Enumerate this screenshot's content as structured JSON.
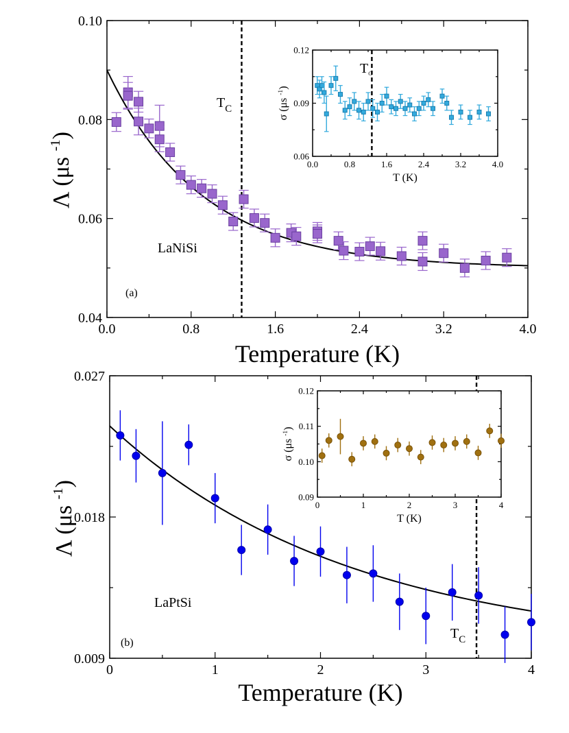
{
  "chart_data": [
    {
      "id": "a",
      "type": "scatter",
      "panel_label": "(a)",
      "sample_label": "LaNiSi",
      "tc_label": "T",
      "tc_sub": "C",
      "tc_value": 1.28,
      "xlabel": "Temperature (K)",
      "ylabel_main": "Λ (μs",
      "ylabel_sup": "-1",
      "ylabel_close": ")",
      "xlim": [
        0.0,
        4.0
      ],
      "ylim": [
        0.04,
        0.1
      ],
      "xticks": [
        0.0,
        0.8,
        1.6,
        2.4,
        3.2,
        4.0
      ],
      "xtick_labels": [
        "0.0",
        "0.8",
        "1.6",
        "2.4",
        "3.2",
        "4.0"
      ],
      "yticks": [
        0.04,
        0.06,
        0.08,
        0.1
      ],
      "ytick_labels": [
        "0.04",
        "0.06",
        "0.08",
        "0.10"
      ],
      "marker": "square",
      "color": "#9966cc",
      "edge_color": "#6a3fa0",
      "fit": {
        "type": "exp_decay",
        "A0": 0.09,
        "A_inf": 0.05,
        "tau": 0.9
      },
      "series": [
        {
          "x": [
            0.09,
            0.2,
            0.2,
            0.3,
            0.3,
            0.4,
            0.5,
            0.5,
            0.6,
            0.7,
            0.8,
            0.9,
            1.0,
            1.1,
            1.2,
            1.3,
            1.4,
            1.5,
            1.6,
            1.75,
            1.8,
            2.0,
            2.0,
            2.2,
            2.25,
            2.4,
            2.5,
            2.6,
            2.8,
            3.0,
            3.0,
            3.2,
            3.4,
            3.6,
            3.8
          ],
          "y": [
            0.0795,
            0.0855,
            0.0848,
            0.0836,
            0.0796,
            0.0782,
            0.0787,
            0.076,
            0.0734,
            0.0688,
            0.0668,
            0.0661,
            0.065,
            0.0627,
            0.0594,
            0.0639,
            0.0601,
            0.0591,
            0.0561,
            0.0571,
            0.0564,
            0.0574,
            0.0569,
            0.0555,
            0.0535,
            0.0533,
            0.0544,
            0.0534,
            0.0524,
            0.0555,
            0.0513,
            0.053,
            0.05,
            0.0515,
            0.0521
          ],
          "err": [
            0.0019,
            0.0032,
            0.0027,
            0.0021,
            0.0027,
            0.0019,
            0.0042,
            0.0025,
            0.0018,
            0.0018,
            0.0018,
            0.0018,
            0.0018,
            0.0018,
            0.0018,
            0.0018,
            0.0018,
            0.0018,
            0.0018,
            0.0018,
            0.0018,
            0.0018,
            0.0018,
            0.0018,
            0.0018,
            0.0018,
            0.0018,
            0.0018,
            0.0018,
            0.0018,
            0.0018,
            0.0018,
            0.0018,
            0.0018,
            0.0018
          ]
        }
      ],
      "inset": {
        "type": "scatter",
        "xlabel": "T (K)",
        "ylabel": "σ (μs",
        "ylabel_sup": "-1",
        "ylabel_close": ")",
        "tc_label": "T",
        "tc_sub": "C",
        "tc_value": 1.28,
        "xlim": [
          0.0,
          4.0
        ],
        "ylim": [
          0.06,
          0.12
        ],
        "xticks": [
          0.0,
          0.8,
          1.6,
          2.4,
          3.2,
          4.0
        ],
        "xtick_labels": [
          "0.0",
          "0.8",
          "1.6",
          "2.4",
          "3.2",
          "4.0"
        ],
        "yticks": [
          0.06,
          0.09,
          0.12
        ],
        "ytick_labels": [
          "0.06",
          "0.09",
          "0.12"
        ],
        "color": "#33aadd",
        "edge_color": "#1a7fb0",
        "marker": "square",
        "series": [
          {
            "x": [
              0.1,
              0.15,
              0.2,
              0.25,
              0.3,
              0.4,
              0.5,
              0.6,
              0.7,
              0.8,
              0.9,
              1.0,
              1.1,
              1.2,
              1.3,
              1.4,
              1.5,
              1.6,
              1.7,
              1.8,
              1.9,
              2.0,
              2.1,
              2.2,
              2.3,
              2.4,
              2.5,
              2.6,
              2.8,
              2.9,
              3.0,
              3.2,
              3.4,
              3.6,
              3.8
            ],
            "y": [
              0.1,
              0.098,
              0.1,
              0.096,
              0.084,
              0.1,
              0.104,
              0.095,
              0.086,
              0.088,
              0.091,
              0.086,
              0.085,
              0.091,
              0.087,
              0.085,
              0.09,
              0.094,
              0.088,
              0.087,
              0.091,
              0.087,
              0.089,
              0.084,
              0.087,
              0.09,
              0.092,
              0.087,
              0.094,
              0.09,
              0.082,
              0.085,
              0.082,
              0.085,
              0.084
            ],
            "err": [
              0.005,
              0.005,
              0.005,
              0.006,
              0.01,
              0.005,
              0.007,
              0.005,
              0.005,
              0.005,
              0.005,
              0.005,
              0.005,
              0.005,
              0.005,
              0.005,
              0.005,
              0.005,
              0.004,
              0.004,
              0.004,
              0.004,
              0.004,
              0.004,
              0.004,
              0.004,
              0.004,
              0.004,
              0.004,
              0.004,
              0.004,
              0.004,
              0.004,
              0.004,
              0.004
            ]
          }
        ]
      }
    },
    {
      "id": "b",
      "type": "scatter",
      "panel_label": "(b)",
      "sample_label": "LaPtSi",
      "tc_label": "T",
      "tc_sub": "C",
      "tc_value": 3.48,
      "xlabel": "Temperature (K)",
      "ylabel_main": "Λ (μs",
      "ylabel_sup": "-1",
      "ylabel_close": ")",
      "xlim": [
        0,
        4
      ],
      "ylim": [
        0.009,
        0.027
      ],
      "xticks": [
        0,
        1,
        2,
        3,
        4
      ],
      "xtick_labels": [
        "0",
        "1",
        "2",
        "3",
        "4"
      ],
      "yticks": [
        0.009,
        0.018,
        0.027
      ],
      "ytick_labels": [
        "0.009",
        "0.018",
        "0.027"
      ],
      "marker": "circle",
      "color": "#0000ee",
      "edge_color": "#0000aa",
      "fit": {
        "type": "exp_decay",
        "A0": 0.0238,
        "A_inf": 0.0095,
        "tau": 2.3
      },
      "series": [
        {
          "x": [
            0.1,
            0.25,
            0.5,
            0.75,
            1.0,
            1.25,
            1.5,
            1.75,
            2.0,
            2.25,
            2.5,
            2.75,
            3.0,
            3.25,
            3.5,
            3.75,
            4.0
          ],
          "y": [
            0.0232,
            0.0219,
            0.0208,
            0.0226,
            0.0192,
            0.0159,
            0.0172,
            0.0152,
            0.0158,
            0.0143,
            0.0144,
            0.0126,
            0.0117,
            0.0132,
            0.013,
            0.0105,
            0.0113
          ],
          "err": [
            0.0016,
            0.0017,
            0.0033,
            0.0013,
            0.0016,
            0.0016,
            0.0016,
            0.0016,
            0.0016,
            0.0018,
            0.0018,
            0.0018,
            0.0018,
            0.0018,
            0.0018,
            0.0018,
            0.0018
          ]
        }
      ],
      "inset": {
        "type": "scatter",
        "xlabel": "T (K)",
        "ylabel": "σ (μs",
        "ylabel_sup": "-1",
        "ylabel_close": ")",
        "xlim": [
          0,
          4
        ],
        "ylim": [
          0.09,
          0.12
        ],
        "xticks": [
          0,
          1,
          2,
          3,
          4
        ],
        "xtick_labels": [
          "0",
          "1",
          "2",
          "3",
          "4"
        ],
        "yticks": [
          0.09,
          0.1,
          0.11,
          0.12
        ],
        "ytick_labels": [
          "0.09",
          "0.10",
          "0.11",
          "0.12"
        ],
        "color": "#a07010",
        "edge_color": "#7a5208",
        "marker": "circle",
        "series": [
          {
            "x": [
              0.1,
              0.25,
              0.5,
              0.75,
              1.0,
              1.25,
              1.5,
              1.75,
              2.0,
              2.25,
              2.5,
              2.75,
              3.0,
              3.25,
              3.5,
              3.75,
              4.0
            ],
            "y": [
              0.1017,
              0.106,
              0.1071,
              0.1007,
              0.1052,
              0.1057,
              0.1024,
              0.1047,
              0.1037,
              0.1013,
              0.1054,
              0.1047,
              0.1052,
              0.1057,
              0.1025,
              0.1087,
              0.1059
            ],
            "err": [
              0.002,
              0.002,
              0.005,
              0.002,
              0.002,
              0.002,
              0.002,
              0.002,
              0.002,
              0.002,
              0.002,
              0.002,
              0.002,
              0.002,
              0.002,
              0.002,
              0.002
            ]
          }
        ]
      }
    }
  ]
}
